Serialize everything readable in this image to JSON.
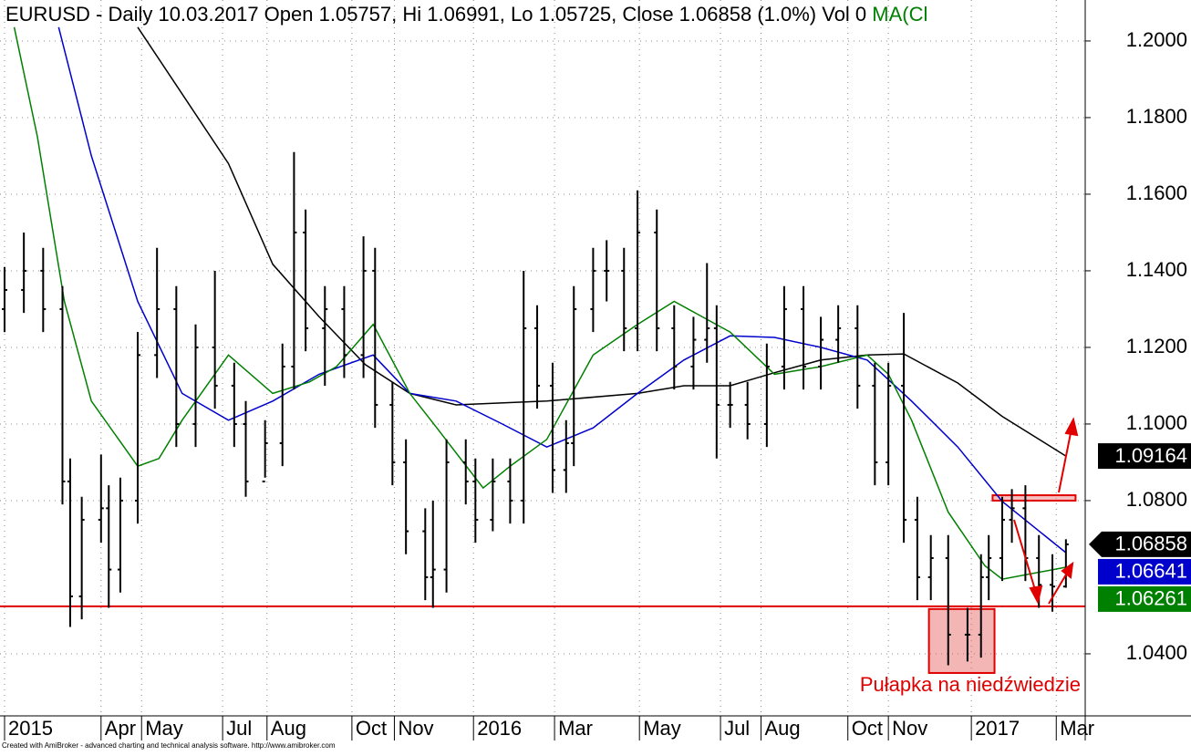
{
  "chart_data": {
    "type": "ohlc",
    "title": "EURUSD - Daily 10.03.2017 Open 1.05757, Hi 1.06991, Lo 1.05725, Close 1.06858 (1.0%) Vol 0",
    "title_indicator": "MA(Cl",
    "footer": "Created with AmiBroker - advanced charting and technical analysis software. http://www.amibroker.com",
    "annotation": "Pułapka na niedźwiedzie",
    "color": "#000000",
    "xlim": [
      0,
      560
    ],
    "ylim": [
      1.0238,
      1.2107
    ],
    "yticks": [
      {
        "value": 1.2,
        "label": "1.2000"
      },
      {
        "value": 1.18,
        "label": "1.1800"
      },
      {
        "value": 1.16,
        "label": "1.1600"
      },
      {
        "value": 1.14,
        "label": "1.1400"
      },
      {
        "value": 1.12,
        "label": "1.1200"
      },
      {
        "value": 1.1,
        "label": "1.1000"
      },
      {
        "value": 1.08,
        "label": "1.0800"
      },
      {
        "value": 1.04,
        "label": "1.0400"
      }
    ],
    "xticks": [
      {
        "value": 0,
        "label": "2015"
      },
      {
        "value": 50,
        "label": "Apr"
      },
      {
        "value": 71,
        "label": "May"
      },
      {
        "value": 113,
        "label": "Jul"
      },
      {
        "value": 136,
        "label": "Aug"
      },
      {
        "value": 180,
        "label": "Oct"
      },
      {
        "value": 202,
        "label": "Nov"
      },
      {
        "value": 243,
        "label": "2016"
      },
      {
        "value": 285,
        "label": "Mar"
      },
      {
        "value": 329,
        "label": "May"
      },
      {
        "value": 371,
        "label": "Jul"
      },
      {
        "value": 392,
        "label": "Aug"
      },
      {
        "value": 437,
        "label": "Oct"
      },
      {
        "value": 458,
        "label": "Nov"
      },
      {
        "value": 501,
        "label": "2017"
      },
      {
        "value": 545,
        "label": "Mar"
      }
    ],
    "grid": true,
    "x": [
      0,
      10,
      20,
      30,
      34,
      40,
      50,
      54,
      60,
      69,
      79,
      89,
      99,
      109,
      119,
      125,
      135,
      144,
      150,
      156,
      166,
      176,
      186,
      192,
      201,
      208,
      218,
      222,
      229,
      239,
      244,
      253,
      262,
      269,
      276,
      284,
      291,
      295,
      305,
      312,
      321,
      328,
      338,
      347,
      357,
      364,
      369,
      376,
      385,
      395,
      404,
      414,
      423,
      432,
      442,
      451,
      458,
      466,
      473,
      480,
      489,
      499,
      506,
      510,
      517,
      522,
      529,
      536,
      543,
      550
    ],
    "open": [
      1.13,
      1.135,
      1.14,
      1.13,
      1.085,
      1.055,
      1.075,
      1.078,
      1.062,
      1.08,
      1.118,
      1.13,
      1.1,
      1.12,
      1.11,
      1.1,
      1.085,
      1.095,
      1.115,
      1.15,
      1.125,
      1.13,
      1.118,
      1.14,
      1.105,
      1.09,
      1.072,
      1.06,
      1.062,
      1.09,
      1.085,
      1.075,
      1.085,
      1.08,
      1.125,
      1.11,
      1.088,
      1.095,
      1.13,
      1.14,
      1.14,
      1.125,
      1.15,
      1.125,
      1.115,
      1.122,
      1.125,
      1.105,
      1.105,
      1.1,
      1.115,
      1.13,
      1.115,
      1.122,
      1.125,
      1.11,
      1.09,
      1.11,
      1.075,
      1.06,
      1.065,
      1.045,
      1.045,
      1.06,
      1.065,
      1.075,
      1.078,
      1.065,
      1.058,
      1.05757
    ],
    "high": [
      1.141,
      1.15,
      1.146,
      1.136,
      1.091,
      1.081,
      1.092,
      1.084,
      1.086,
      1.124,
      1.146,
      1.136,
      1.126,
      1.14,
      1.116,
      1.106,
      1.101,
      1.121,
      1.171,
      1.156,
      1.136,
      1.136,
      1.149,
      1.146,
      1.111,
      1.096,
      1.078,
      1.08,
      1.096,
      1.096,
      1.091,
      1.091,
      1.091,
      1.14,
      1.131,
      1.116,
      1.101,
      1.136,
      1.146,
      1.148,
      1.146,
      1.161,
      1.156,
      1.131,
      1.128,
      1.142,
      1.131,
      1.111,
      1.111,
      1.121,
      1.136,
      1.136,
      1.128,
      1.131,
      1.131,
      1.116,
      1.116,
      1.129,
      1.081,
      1.071,
      1.071,
      1.052,
      1.066,
      1.071,
      1.081,
      1.083,
      1.084,
      1.071,
      1.066,
      1.06991
    ],
    "low": [
      1.124,
      1.129,
      1.124,
      1.079,
      1.047,
      1.049,
      1.069,
      1.052,
      1.056,
      1.074,
      1.112,
      1.094,
      1.094,
      1.104,
      1.094,
      1.081,
      1.086,
      1.089,
      1.109,
      1.119,
      1.11,
      1.112,
      1.112,
      1.099,
      1.084,
      1.066,
      1.054,
      1.052,
      1.056,
      1.079,
      1.069,
      1.072,
      1.074,
      1.074,
      1.104,
      1.082,
      1.082,
      1.089,
      1.124,
      1.132,
      1.119,
      1.119,
      1.119,
      1.109,
      1.109,
      1.116,
      1.091,
      1.099,
      1.096,
      1.094,
      1.109,
      1.109,
      1.109,
      1.116,
      1.104,
      1.084,
      1.084,
      1.069,
      1.054,
      1.054,
      1.037,
      1.038,
      1.039,
      1.054,
      1.059,
      1.069,
      1.059,
      1.052,
      1.051,
      1.05725
    ],
    "close": [
      1.135,
      1.14,
      1.13,
      1.085,
      1.055,
      1.075,
      1.078,
      1.062,
      1.08,
      1.118,
      1.13,
      1.1,
      1.12,
      1.11,
      1.1,
      1.085,
      1.095,
      1.115,
      1.15,
      1.125,
      1.13,
      1.118,
      1.14,
      1.105,
      1.09,
      1.072,
      1.06,
      1.062,
      1.09,
      1.085,
      1.075,
      1.085,
      1.08,
      1.125,
      1.11,
      1.088,
      1.095,
      1.13,
      1.14,
      1.14,
      1.125,
      1.15,
      1.125,
      1.115,
      1.122,
      1.125,
      1.105,
      1.105,
      1.1,
      1.115,
      1.13,
      1.115,
      1.122,
      1.125,
      1.11,
      1.09,
      1.11,
      1.075,
      1.06,
      1.065,
      1.045,
      1.045,
      1.06,
      1.065,
      1.075,
      1.078,
      1.065,
      1.058,
      1.05757,
      1.06858
    ],
    "series": [
      {
        "color": "#000000",
        "x": [
          69,
          116,
          139,
          163,
          187,
          210,
          234,
          281,
          328,
          352,
          376,
          399,
          423,
          447,
          466,
          494,
          517,
          550
        ],
        "values": [
          1.2036,
          1.168,
          1.1417,
          1.128,
          1.1155,
          1.108,
          1.105,
          1.106,
          1.108,
          1.11,
          1.11,
          1.1134,
          1.1167,
          1.118,
          1.1183,
          1.1107,
          1.102,
          1.09164
        ]
      },
      {
        "color": "#0000cc",
        "x": [
          28,
          45,
          69,
          92,
          116,
          139,
          163,
          191,
          210,
          234,
          258,
          281,
          305,
          328,
          352,
          376,
          399,
          423,
          447,
          470,
          494,
          517,
          550
        ],
        "values": [
          1.2036,
          1.17,
          1.132,
          1.108,
          1.101,
          1.106,
          1.113,
          1.118,
          1.108,
          1.106,
          1.1,
          1.094,
          1.099,
          1.108,
          1.1167,
          1.123,
          1.1226,
          1.12,
          1.1167,
          1.106,
          1.094,
          1.0798,
          1.06641
        ]
      },
      {
        "color": "#008000",
        "x": [
          5,
          17,
          31,
          45,
          69,
          80,
          92,
          116,
          139,
          158,
          172,
          191,
          210,
          224,
          248,
          262,
          281,
          305,
          328,
          347,
          376,
          399,
          423,
          447,
          458,
          470,
          489,
          508,
          517,
          550
        ],
        "values": [
          1.2036,
          1.175,
          1.132,
          1.106,
          1.089,
          1.091,
          1.101,
          1.118,
          1.108,
          1.111,
          1.115,
          1.126,
          1.108,
          1.099,
          1.0833,
          1.089,
          1.096,
          1.118,
          1.126,
          1.132,
          1.124,
          1.113,
          1.115,
          1.118,
          1.113,
          1.101,
          1.077,
          1.063,
          1.0595,
          1.06261
        ]
      }
    ],
    "support_level": 1.0524,
    "annotation_color": "#e00000",
    "zones": [
      {
        "x": [
          479,
          513
        ],
        "y": [
          1.035,
          1.0517
        ]
      },
      {
        "x": [
          512,
          555
        ],
        "y": [
          1.08,
          1.0814
        ]
      }
    ]
  }
}
